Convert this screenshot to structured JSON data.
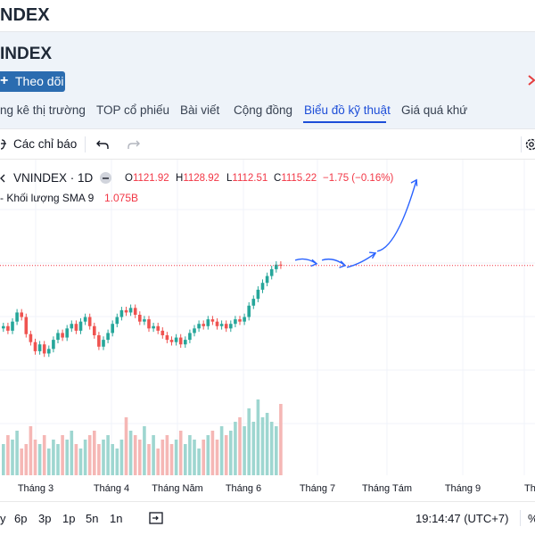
{
  "page": {
    "top_title": "NDEX",
    "big_title": "INDEX",
    "follow_button": "Theo dõi",
    "accent_color": "#2b6cb0"
  },
  "tabs": [
    {
      "label": "ng kê thị trường",
      "active": false
    },
    {
      "label": "TOP cổ phiếu",
      "active": false
    },
    {
      "label": "Bài viết",
      "active": false
    },
    {
      "label": "Cộng đồng",
      "active": false
    },
    {
      "label": "Biểu đồ kỹ thuật",
      "active": true
    },
    {
      "label": "Giá quá khứ",
      "active": false
    }
  ],
  "toolbar": {
    "indicators_label": "Các chỉ báo",
    "icons": [
      "indicators-icon",
      "undo-icon",
      "redo-icon",
      "settings-icon"
    ]
  },
  "legend": {
    "symbol": "VNINDEX · 1D",
    "open_key": "O",
    "open": "1121.92",
    "high_key": "H",
    "high": "1128.92",
    "low_key": "L",
    "low": "1112.51",
    "close_key": "C",
    "close": "1115.22",
    "change": "−1.75 (−0.16%)",
    "volume_label": "- Khối lượng SMA 9",
    "volume_value": "1.075B",
    "up_color": "#26a69a",
    "down_color": "#ef5350"
  },
  "chart_data": {
    "type": "candlestick",
    "symbol": "VNINDEX",
    "interval": "1D",
    "x_tick_labels": [
      "Tháng 3",
      "Tháng 4",
      "Tháng Năm",
      "Tháng 6",
      "Tháng 7",
      "Tháng Tám",
      "Tháng 9",
      "Thán"
    ],
    "last_price_line": 1115.22,
    "close_series": [
      1062,
      1058,
      1066,
      1074,
      1070,
      1055,
      1048,
      1040,
      1046,
      1038,
      1042,
      1050,
      1056,
      1052,
      1060,
      1064,
      1058,
      1066,
      1070,
      1062,
      1054,
      1044,
      1050,
      1056,
      1064,
      1070,
      1076,
      1074,
      1078,
      1072,
      1066,
      1068,
      1060,
      1062,
      1058,
      1054,
      1050,
      1048,
      1052,
      1046,
      1050,
      1056,
      1060,
      1064,
      1062,
      1068,
      1066,
      1062,
      1064,
      1060,
      1064,
      1068,
      1066,
      1070,
      1080,
      1086,
      1094,
      1100,
      1106,
      1112,
      1116,
      1115.22
    ],
    "volume_series": [
      0.7,
      0.9,
      0.8,
      1.0,
      0.6,
      0.7,
      1.1,
      0.8,
      0.7,
      0.9,
      0.6,
      0.8,
      0.7,
      0.9,
      0.8,
      1.0,
      0.7,
      0.6,
      0.8,
      0.9,
      1.0,
      0.7,
      0.8,
      0.9,
      0.7,
      0.6,
      0.8,
      1.3,
      1.0,
      0.9,
      0.8,
      1.1,
      0.7,
      0.9,
      0.6,
      0.8,
      0.9,
      0.7,
      0.8,
      1.0,
      0.7,
      0.9,
      0.8,
      0.6,
      0.8,
      0.9,
      1.0,
      0.8,
      1.1,
      0.9,
      1.0,
      1.2,
      1.3,
      1.1,
      1.5,
      1.2,
      1.7,
      1.3,
      1.4,
      1.2,
      1.1,
      1.6
    ],
    "grid": true
  },
  "bottom_bar": {
    "ranges": [
      "y",
      "6p",
      "3p",
      "1p",
      "5n",
      "1n"
    ],
    "time": "19:14:47 (UTC+7)",
    "pct": "%"
  }
}
